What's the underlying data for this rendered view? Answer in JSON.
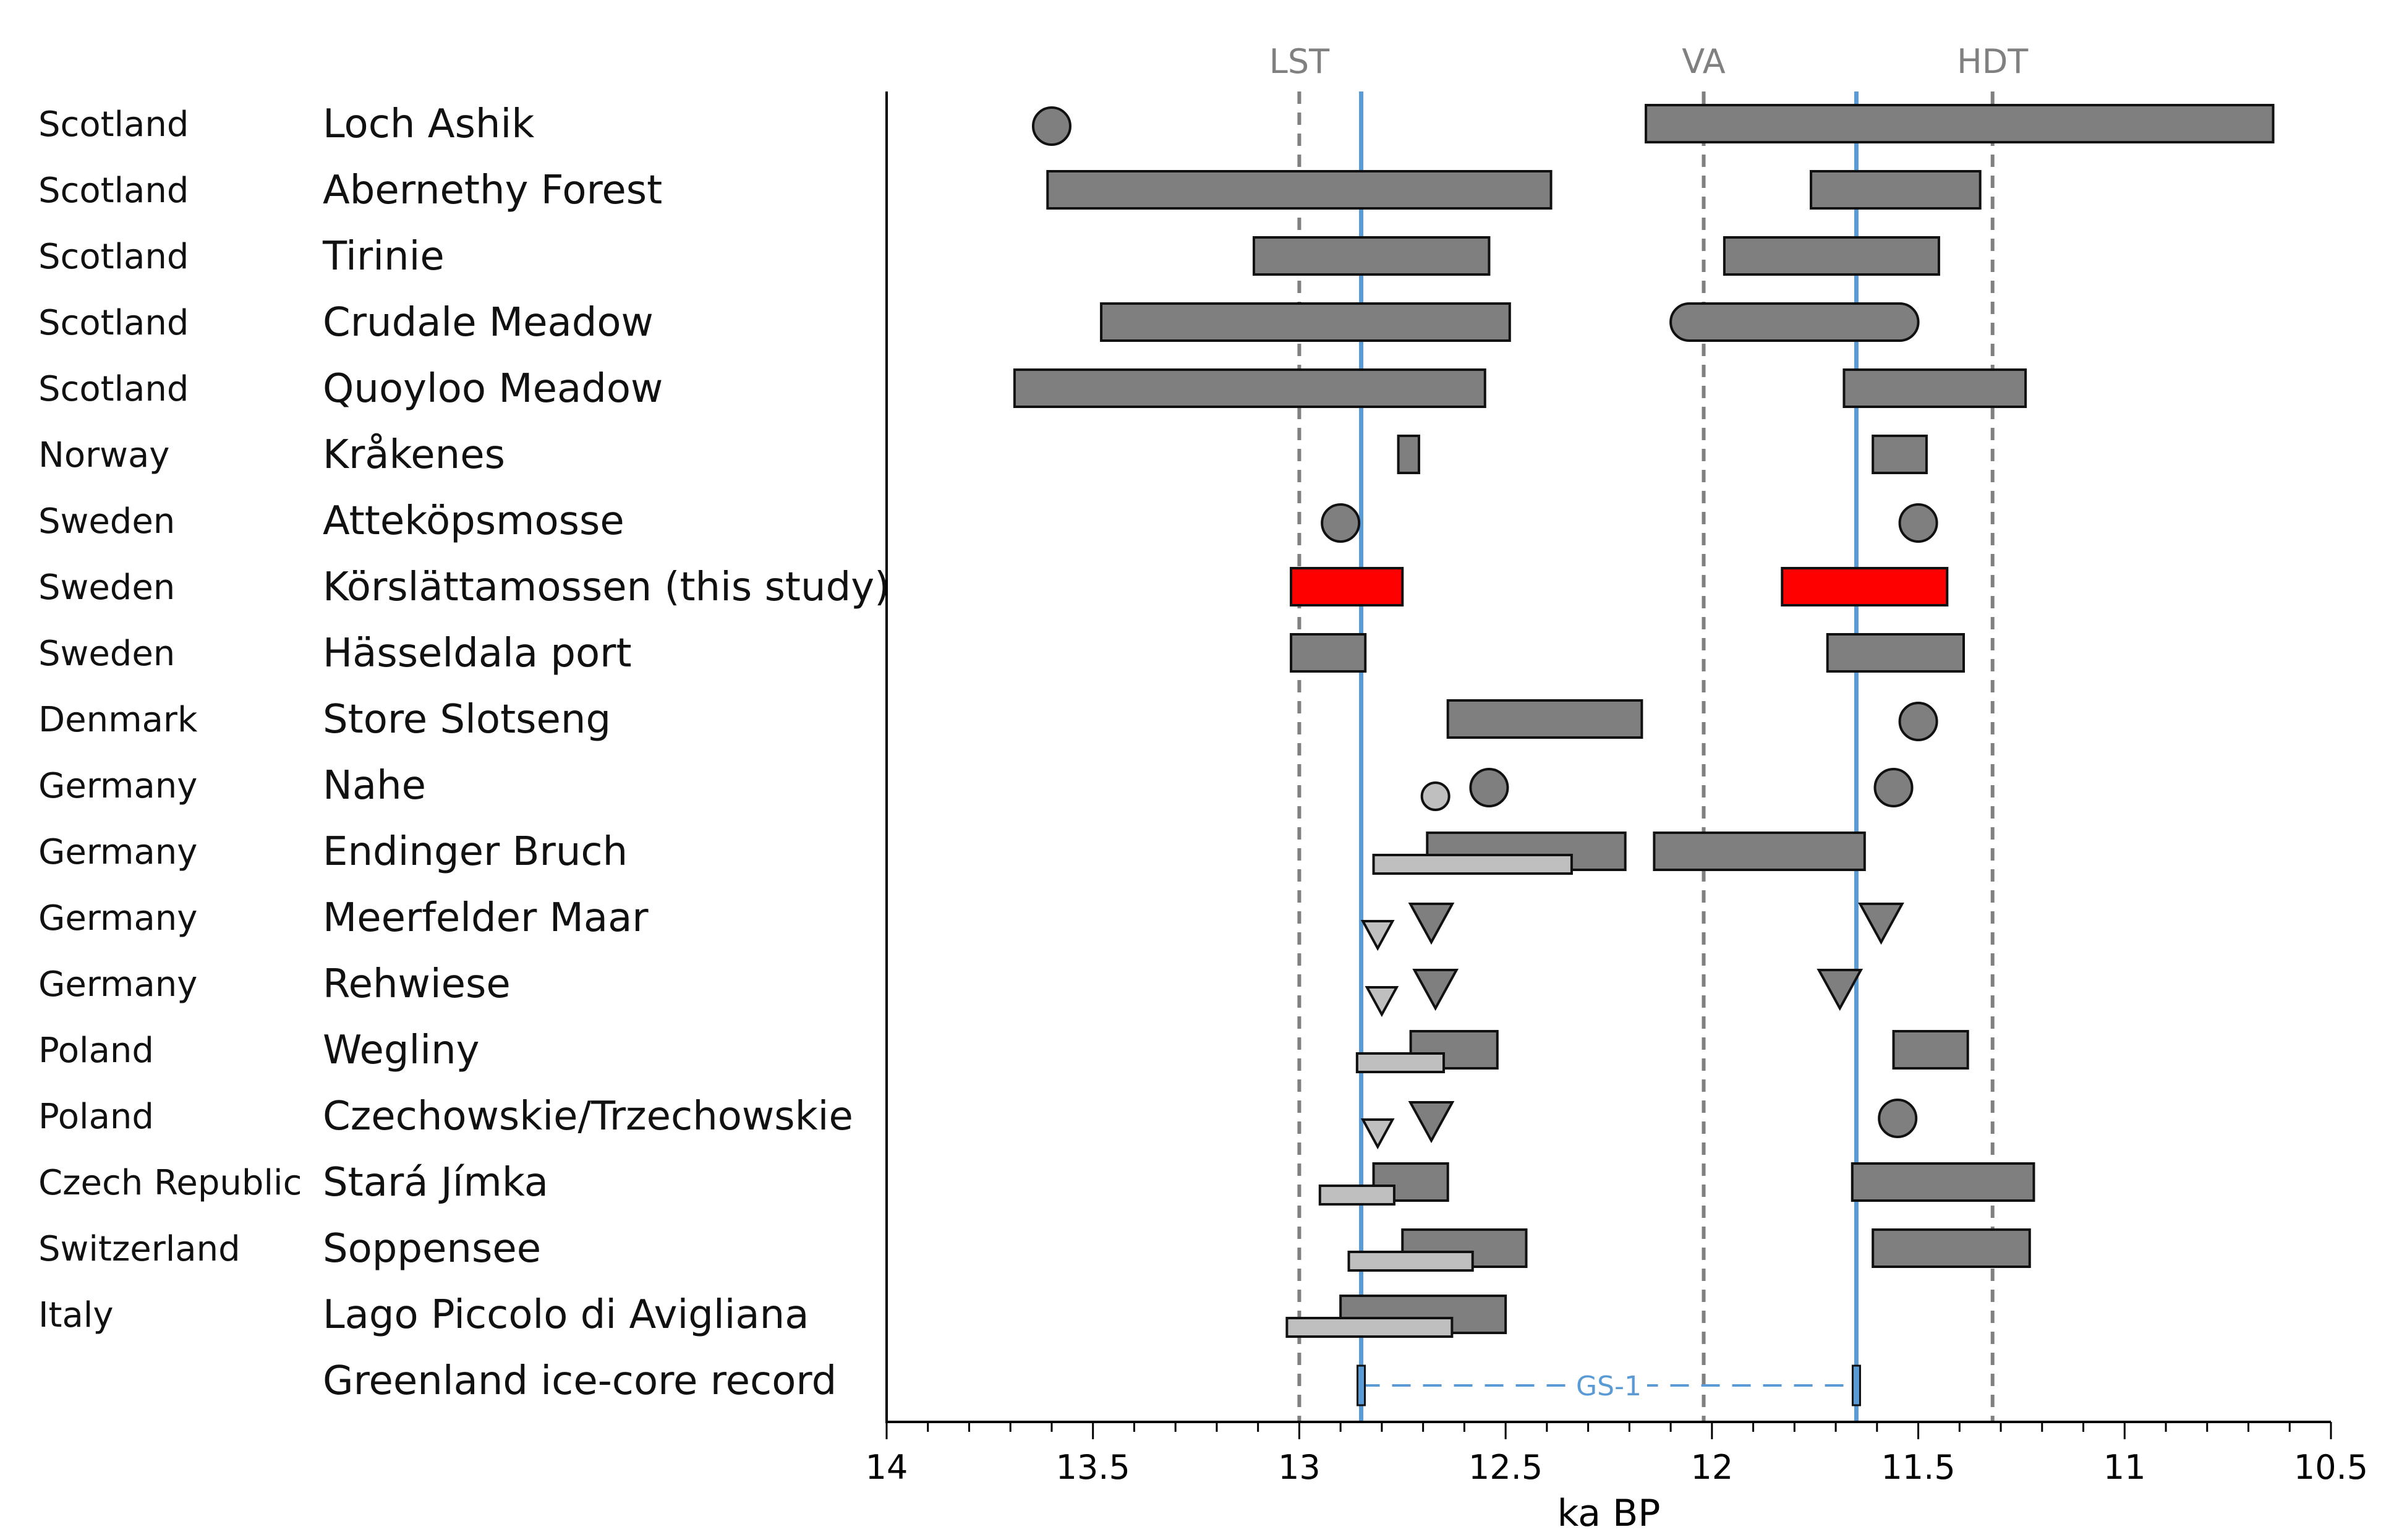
{
  "chart_data": {
    "type": "range",
    "xlabel": "ka BP",
    "xlim": [
      14,
      10.5
    ],
    "x_ticks": [
      14,
      13.5,
      13,
      12.5,
      12,
      11.5,
      11,
      10.5
    ],
    "x_tick_labels": [
      "14",
      "13.5",
      "13",
      "12.5",
      "12",
      "11.5",
      "11",
      "10.5"
    ],
    "reference_lines": [
      {
        "label": "LST",
        "x": 13.0,
        "style": "dashed",
        "color": "#808080"
      },
      {
        "label": "VA",
        "x": 12.02,
        "style": "dashed",
        "color": "#808080"
      },
      {
        "label": "HDT",
        "x": 11.32,
        "style": "dashed",
        "color": "#808080"
      },
      {
        "label": "",
        "x": 12.85,
        "style": "solid",
        "color": "#5b9bd5"
      },
      {
        "label": "",
        "x": 11.65,
        "style": "solid",
        "color": "#5b9bd5"
      }
    ],
    "colors": {
      "dark": "#7f7f7f",
      "light": "#bfbfbf",
      "highlight": "#ff0000",
      "blue": "#5b9bd5"
    },
    "rows": [
      {
        "country": "Scotland",
        "site": "Loch Ashik",
        "items": [
          {
            "kind": "circle",
            "x": 13.6,
            "tone": "dark"
          },
          {
            "kind": "bar",
            "from": 12.16,
            "to": 10.64,
            "tone": "dark"
          }
        ]
      },
      {
        "country": "Scotland",
        "site": "Abernethy Forest",
        "items": [
          {
            "kind": "bar",
            "from": 13.61,
            "to": 12.39,
            "tone": "dark"
          },
          {
            "kind": "bar",
            "from": 11.76,
            "to": 11.35,
            "tone": "dark"
          }
        ]
      },
      {
        "country": "Scotland",
        "site": "Tirinie",
        "items": [
          {
            "kind": "bar",
            "from": 13.11,
            "to": 12.54,
            "tone": "dark"
          },
          {
            "kind": "bar",
            "from": 11.97,
            "to": 11.45,
            "tone": "dark"
          }
        ]
      },
      {
        "country": "Scotland",
        "site": "Crudale Meadow",
        "items": [
          {
            "kind": "bar",
            "from": 13.48,
            "to": 12.49,
            "tone": "dark"
          },
          {
            "kind": "rounded-bar",
            "from": 12.1,
            "to": 11.5,
            "tone": "dark"
          }
        ]
      },
      {
        "country": "Scotland",
        "site": "Quoyloo Meadow",
        "items": [
          {
            "kind": "bar",
            "from": 13.69,
            "to": 12.55,
            "tone": "dark"
          },
          {
            "kind": "bar",
            "from": 11.68,
            "to": 11.24,
            "tone": "dark"
          }
        ]
      },
      {
        "country": "Norway",
        "site": "Kråkenes",
        "items": [
          {
            "kind": "bar",
            "from": 12.76,
            "to": 12.71,
            "tone": "dark"
          },
          {
            "kind": "bar",
            "from": 11.61,
            "to": 11.48,
            "tone": "dark"
          }
        ]
      },
      {
        "country": "Sweden",
        "site": "Atteköpsmosse",
        "items": [
          {
            "kind": "circle",
            "x": 12.9,
            "tone": "dark"
          },
          {
            "kind": "circle",
            "x": 11.5,
            "tone": "dark"
          }
        ]
      },
      {
        "country": "Sweden",
        "site": "Körslättamossen (this study)",
        "items": [
          {
            "kind": "bar",
            "from": 13.02,
            "to": 12.75,
            "tone": "highlight"
          },
          {
            "kind": "bar",
            "from": 11.83,
            "to": 11.43,
            "tone": "highlight"
          }
        ]
      },
      {
        "country": "Sweden",
        "site": "Hässeldala port",
        "items": [
          {
            "kind": "bar",
            "from": 13.02,
            "to": 12.84,
            "tone": "dark"
          },
          {
            "kind": "bar",
            "from": 11.72,
            "to": 11.39,
            "tone": "dark"
          }
        ]
      },
      {
        "country": "Denmark",
        "site": "Store Slotseng",
        "items": [
          {
            "kind": "bar",
            "from": 12.64,
            "to": 12.17,
            "tone": "dark"
          },
          {
            "kind": "circle",
            "x": 11.5,
            "tone": "dark"
          }
        ]
      },
      {
        "country": "Germany",
        "site": "Nahe",
        "items": [
          {
            "kind": "circle",
            "x": 12.67,
            "tone": "light",
            "size": "small"
          },
          {
            "kind": "circle",
            "x": 12.54,
            "tone": "dark"
          },
          {
            "kind": "circle",
            "x": 11.56,
            "tone": "dark"
          }
        ]
      },
      {
        "country": "Germany",
        "site": "Endinger Bruch",
        "items": [
          {
            "kind": "bar",
            "from": 12.69,
            "to": 12.21,
            "tone": "dark"
          },
          {
            "kind": "bar",
            "from": 12.82,
            "to": 12.34,
            "tone": "light"
          },
          {
            "kind": "bar",
            "from": 12.14,
            "to": 11.63,
            "tone": "dark"
          }
        ]
      },
      {
        "country": "Germany",
        "site": "Meerfelder Maar",
        "items": [
          {
            "kind": "triangle",
            "x": 12.81,
            "tone": "light",
            "size": "small"
          },
          {
            "kind": "triangle",
            "x": 12.68,
            "tone": "dark"
          },
          {
            "kind": "triangle",
            "x": 11.59,
            "tone": "dark"
          }
        ]
      },
      {
        "country": "Germany",
        "site": "Rehwiese",
        "items": [
          {
            "kind": "triangle",
            "x": 12.8,
            "tone": "light",
            "size": "small"
          },
          {
            "kind": "triangle",
            "x": 12.67,
            "tone": "dark"
          },
          {
            "kind": "triangle",
            "x": 11.69,
            "tone": "dark"
          }
        ]
      },
      {
        "country": "Poland",
        "site": "Wegliny",
        "items": [
          {
            "kind": "bar",
            "from": 12.73,
            "to": 12.52,
            "tone": "dark"
          },
          {
            "kind": "bar",
            "from": 12.86,
            "to": 12.65,
            "tone": "light"
          },
          {
            "kind": "bar",
            "from": 11.56,
            "to": 11.38,
            "tone": "dark"
          }
        ]
      },
      {
        "country": "Poland",
        "site": "Czechowskie/Trzechowskie",
        "items": [
          {
            "kind": "triangle",
            "x": 12.81,
            "tone": "light",
            "size": "small"
          },
          {
            "kind": "triangle",
            "x": 12.68,
            "tone": "dark"
          },
          {
            "kind": "circle",
            "x": 11.55,
            "tone": "dark"
          }
        ]
      },
      {
        "country": "Czech Republic",
        "site": "Stará Jímka",
        "items": [
          {
            "kind": "bar",
            "from": 12.82,
            "to": 12.64,
            "tone": "dark"
          },
          {
            "kind": "bar",
            "from": 12.95,
            "to": 12.77,
            "tone": "light"
          },
          {
            "kind": "bar",
            "from": 11.66,
            "to": 11.22,
            "tone": "dark"
          }
        ]
      },
      {
        "country": "Switzerland",
        "site": "Soppensee",
        "items": [
          {
            "kind": "bar",
            "from": 12.75,
            "to": 12.45,
            "tone": "dark"
          },
          {
            "kind": "bar",
            "from": 12.88,
            "to": 12.58,
            "tone": "light"
          },
          {
            "kind": "bar",
            "from": 11.61,
            "to": 11.23,
            "tone": "dark"
          }
        ]
      },
      {
        "country": "Italy",
        "site": "Lago Piccolo di Avigliana",
        "items": [
          {
            "kind": "bar",
            "from": 12.9,
            "to": 12.5,
            "tone": "dark"
          },
          {
            "kind": "bar",
            "from": 13.03,
            "to": 12.63,
            "tone": "light"
          }
        ]
      },
      {
        "country": "",
        "site": "Greenland ice-core record",
        "items": [
          {
            "kind": "interval",
            "from": 12.85,
            "to": 11.65,
            "label": "GS-1",
            "tone": "blue"
          }
        ]
      }
    ]
  }
}
